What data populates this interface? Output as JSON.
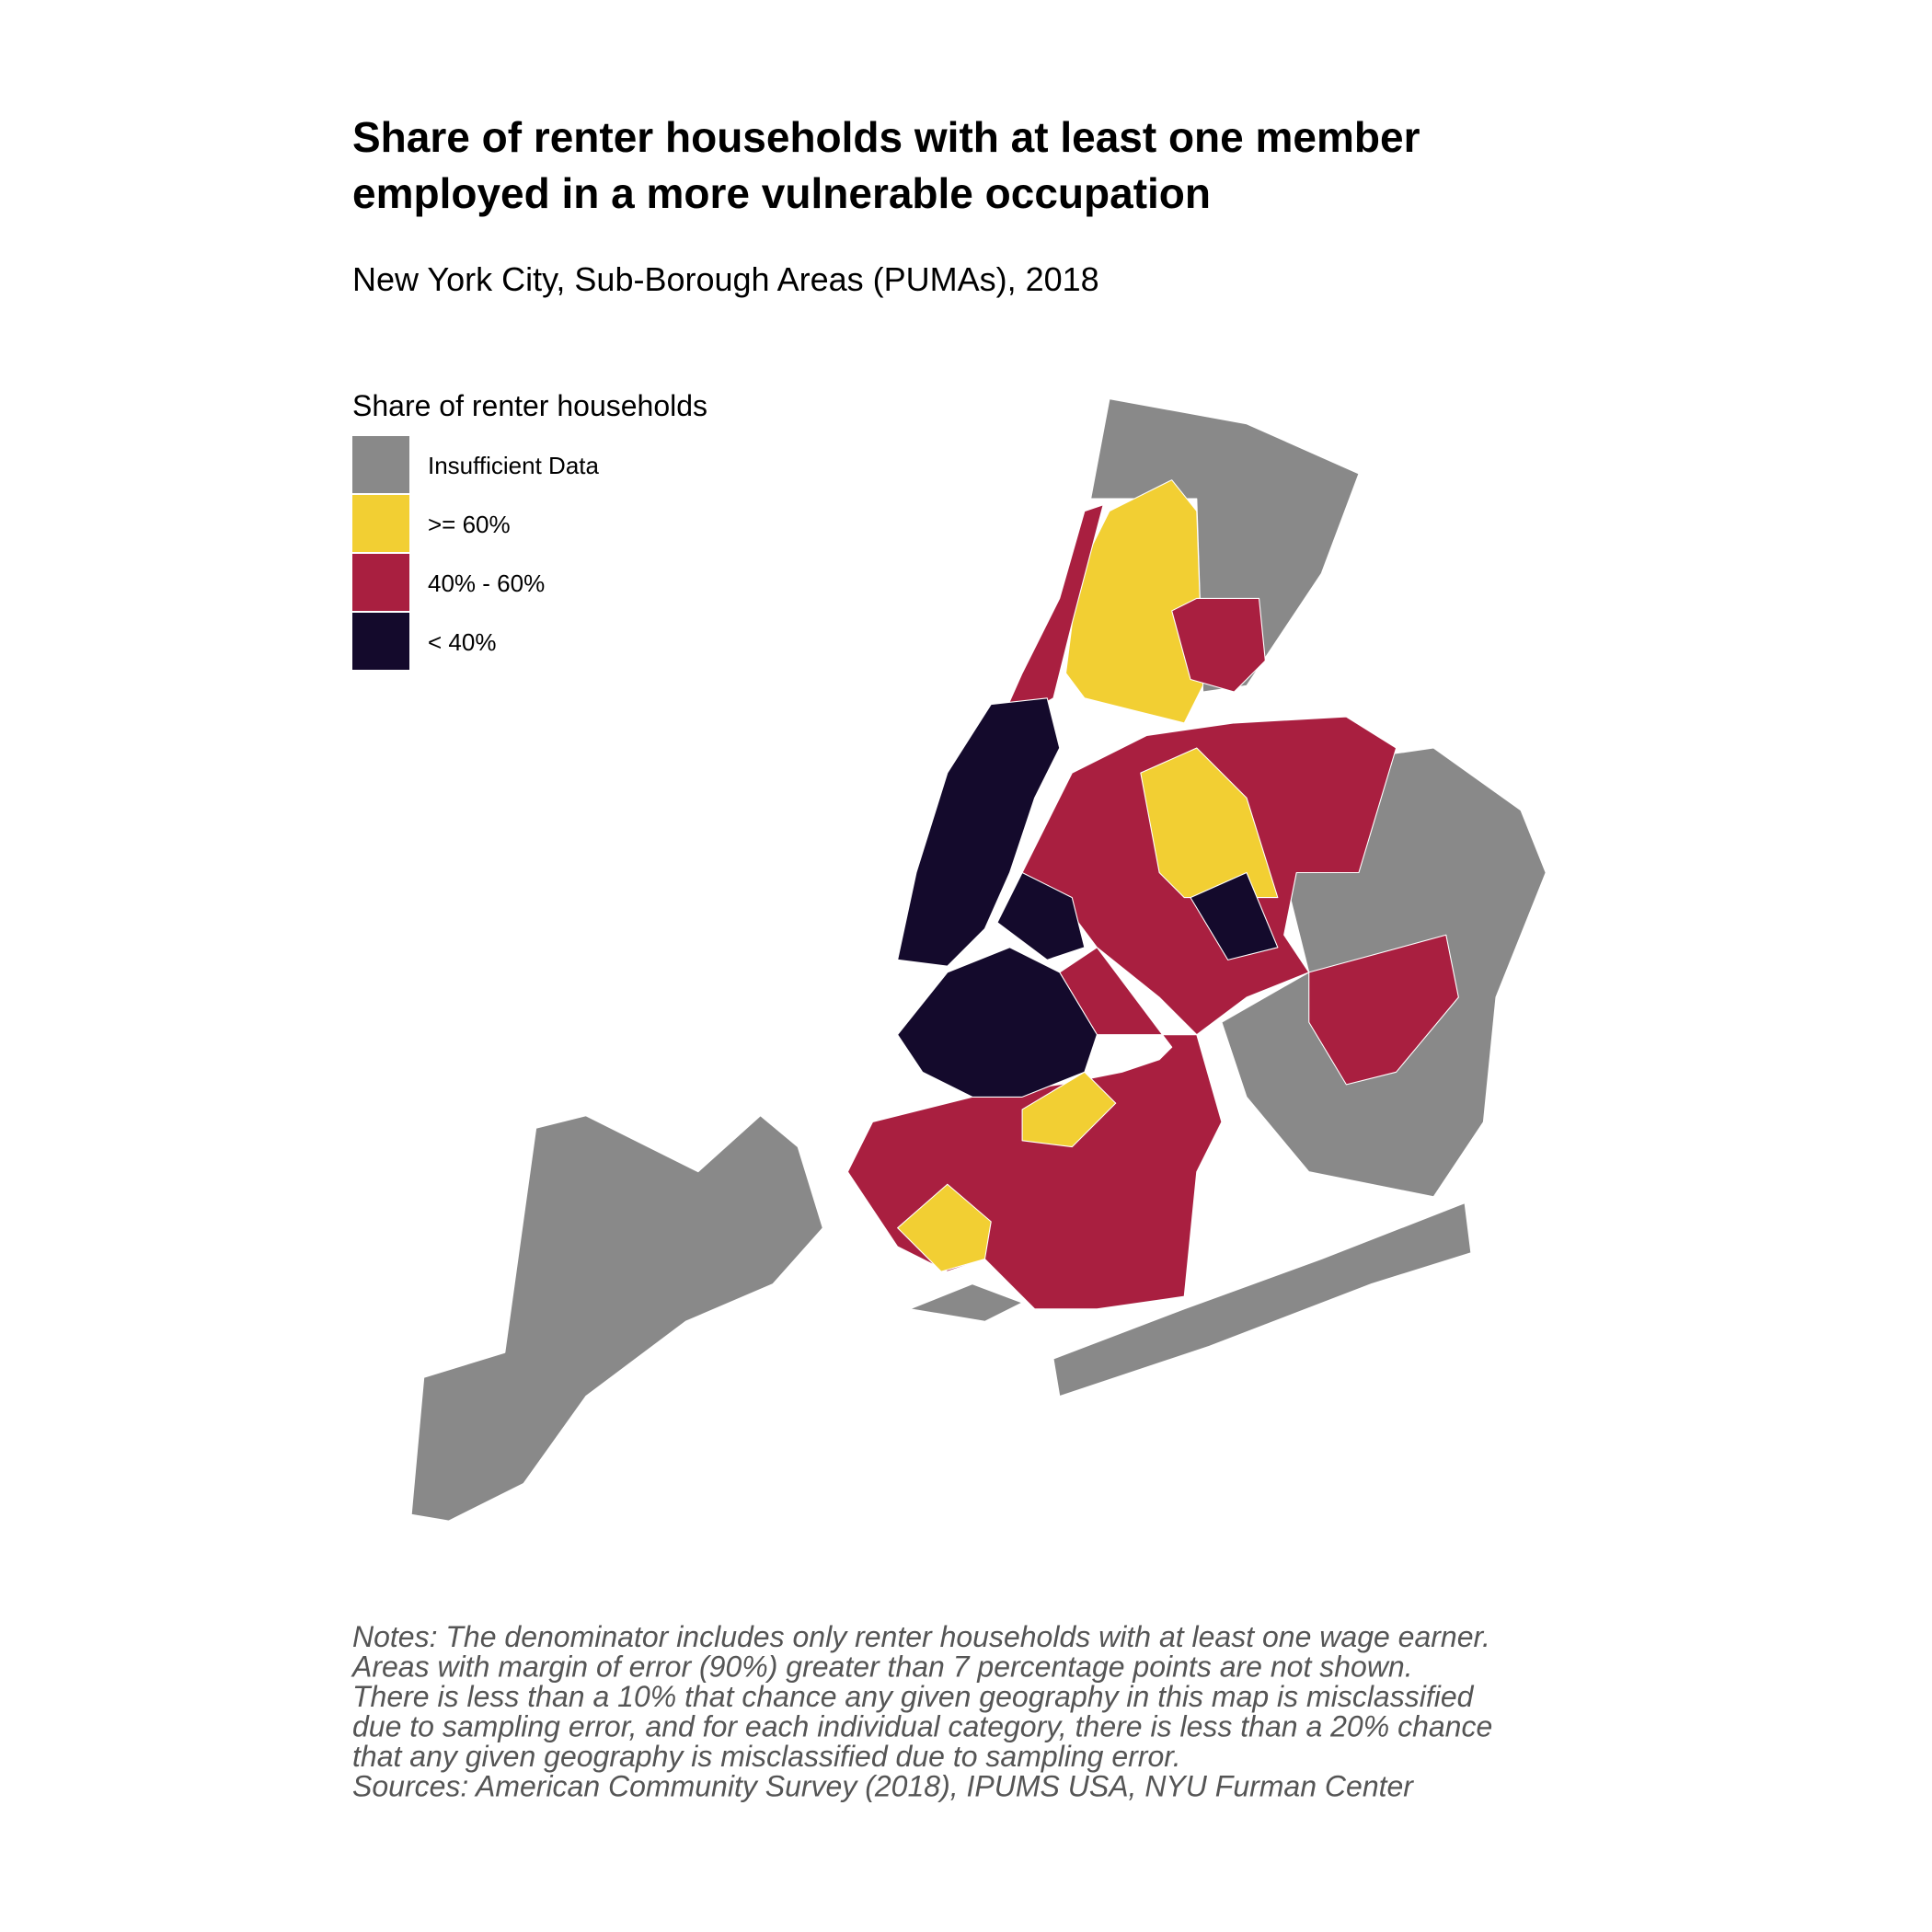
{
  "title": [
    "Share of renter households with at least one member",
    "employed in a more vulnerable occupation"
  ],
  "subtitle": "New York City, Sub-Borough Areas (PUMAs), 2018",
  "legend": {
    "title": "Share of renter households",
    "items": [
      {
        "label": "Insufficient Data",
        "color": "#898989"
      },
      {
        "label": ">= 60%",
        "color": "#f2cf33"
      },
      {
        "label": "40% - 60%",
        "color": "#a91f40"
      },
      {
        "label": "< 40%",
        "color": "#140a2c"
      }
    ]
  },
  "notes": [
    "Notes: The denominator includes only renter households with at least one wage earner.",
    "Areas with margin of error (90%) greater than 7 percentage points are not shown.",
    "There is less than a 10% that chance any given geography in this map is misclassified",
    "due to sampling error, and for each individual category, there is less than a 20% chance",
    "that any given geography is misclassified due to sampling error.",
    "Sources: American Community Survey (2018), IPUMS USA, NYU Furman Center"
  ]
}
